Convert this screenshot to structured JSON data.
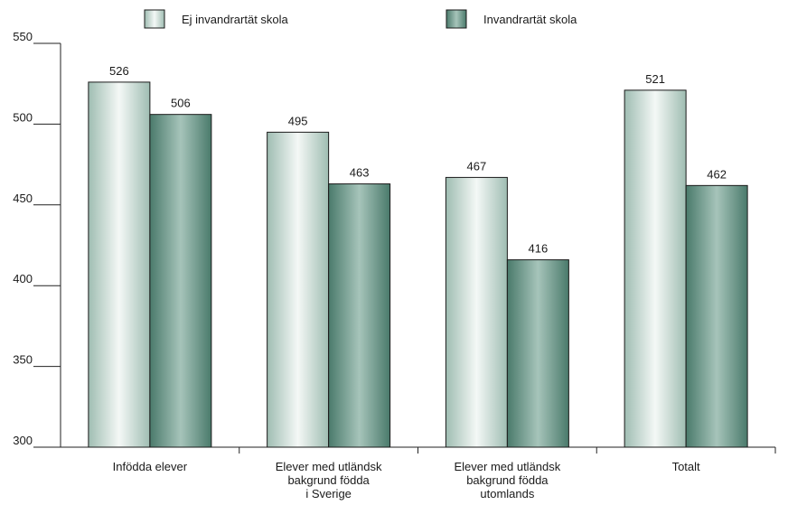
{
  "chart_data": {
    "type": "bar",
    "categories": [
      [
        "Infödda elever"
      ],
      [
        "Elever med utländsk",
        "bakgrund födda",
        "i Sverige"
      ],
      [
        "Elever med utländsk",
        "bakgrund födda",
        "utomlands"
      ],
      [
        "Totalt"
      ]
    ],
    "series": [
      {
        "name": "Ej invandrartät skola",
        "values": [
          526,
          495,
          467,
          521
        ],
        "color": "#d2e2dc"
      },
      {
        "name": "Invandrartät skola",
        "values": [
          506,
          463,
          416,
          462
        ],
        "color": "#6f9b8c"
      }
    ],
    "ylim": [
      300,
      550
    ],
    "yticks": [
      300,
      350,
      400,
      450,
      500,
      550
    ],
    "legend_position": "top",
    "grid": false
  }
}
